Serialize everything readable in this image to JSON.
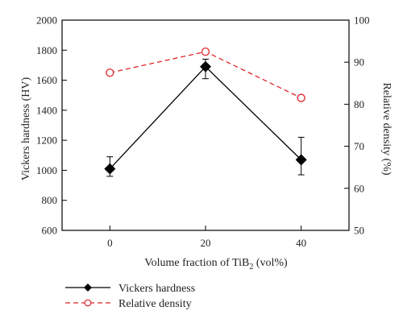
{
  "chart_data": {
    "type": "line",
    "x": [
      0,
      20,
      40
    ],
    "xlabel": {
      "pre": "Volume fraction of TiB",
      "sub": "2",
      "post": " (vol%)"
    },
    "ylabel_left": "Vickers hardness (HV)",
    "ylabel_right": "Relative density (%)",
    "xlim": [
      -10,
      50
    ],
    "ylim_left": [
      600,
      2000
    ],
    "ylim_right": [
      50,
      100
    ],
    "xticks": [
      "0",
      "20",
      "40"
    ],
    "yticks_left": [
      "600",
      "800",
      "1000",
      "1200",
      "1400",
      "1600",
      "1800",
      "2000"
    ],
    "yticks_right": [
      "50",
      "60",
      "70",
      "80",
      "90",
      "100"
    ],
    "series": [
      {
        "name": "Vickers hardness",
        "axis": "left",
        "values": [
          1010,
          1690,
          1070
        ],
        "err_low": [
          960,
          1610,
          970
        ],
        "err_high": [
          1090,
          1740,
          1220
        ],
        "color": "#000000",
        "marker": "diamond",
        "line": "solid"
      },
      {
        "name": "Relative density",
        "axis": "right",
        "values": [
          87.5,
          92.5,
          81.5
        ],
        "color": "#e0242b",
        "marker": "open-circle",
        "line": "dashed"
      }
    ],
    "legend": "bottom-left",
    "grid": false
  }
}
